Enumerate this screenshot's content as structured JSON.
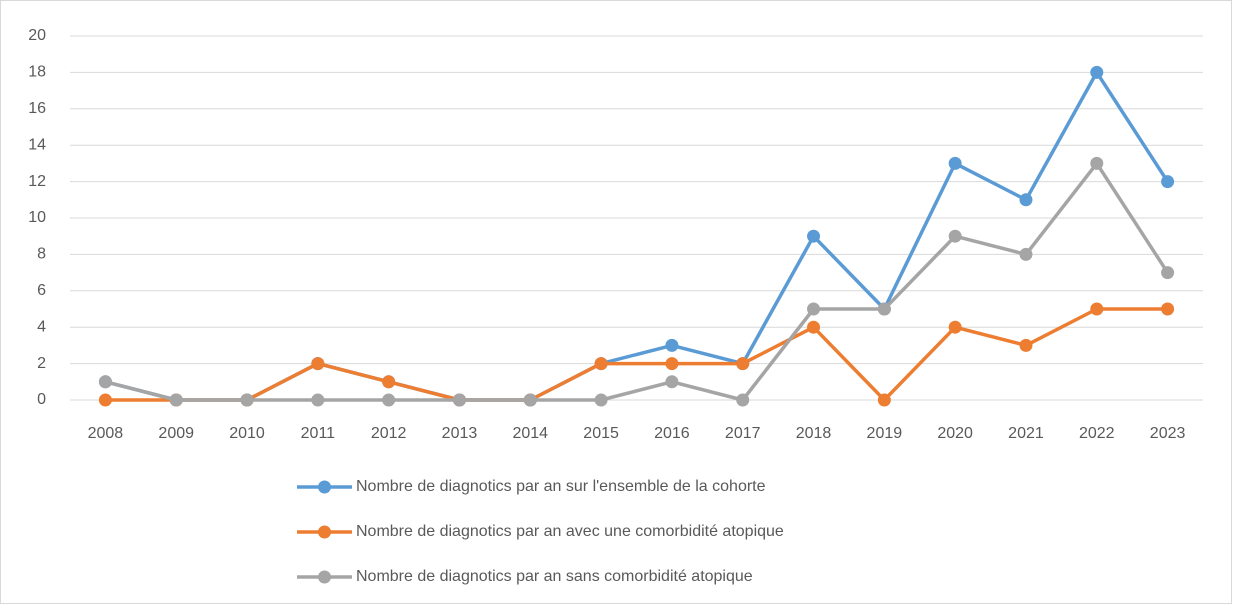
{
  "chart_data": {
    "type": "line",
    "categories": [
      "2008",
      "2009",
      "2010",
      "2011",
      "2012",
      "2013",
      "2014",
      "2015",
      "2016",
      "2017",
      "2018",
      "2019",
      "2020",
      "2021",
      "2022",
      "2023"
    ],
    "series": [
      {
        "name": "Nombre de diagnotics par an sur l'ensemble de la cohorte",
        "color": "#5b9bd5",
        "values": [
          1,
          0,
          0,
          2,
          1,
          0,
          0,
          2,
          3,
          2,
          9,
          5,
          13,
          11,
          18,
          12
        ]
      },
      {
        "name": "Nombre de diagnotics par an avec une comorbidité atopique",
        "color": "#ed7d31",
        "values": [
          0,
          0,
          0,
          2,
          1,
          0,
          0,
          2,
          2,
          2,
          4,
          0,
          4,
          3,
          5,
          5
        ]
      },
      {
        "name": "Nombre de diagnotics par an sans comorbidité atopique",
        "color": "#a5a5a5",
        "values": [
          1,
          0,
          0,
          0,
          0,
          0,
          0,
          0,
          1,
          0,
          5,
          5,
          9,
          8,
          13,
          7
        ]
      }
    ],
    "ylim": [
      0,
      20
    ],
    "yticks": [
      0,
      2,
      4,
      6,
      8,
      10,
      12,
      14,
      16,
      18,
      20
    ],
    "grid": true,
    "legend": "bottom"
  }
}
